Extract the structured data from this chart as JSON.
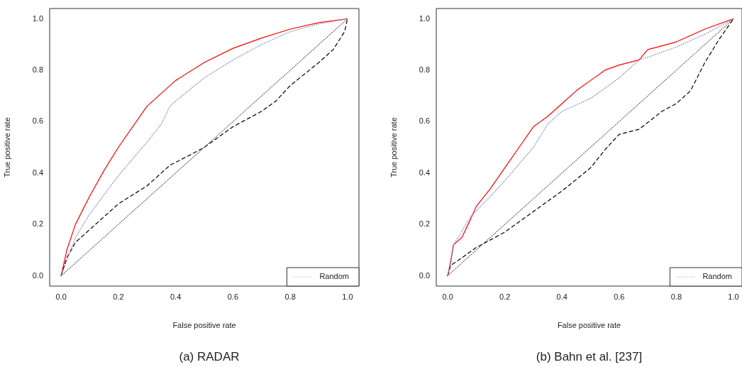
{
  "chart_data": [
    {
      "type": "line",
      "title": "(a) RADAR",
      "xlabel": "False positive rate",
      "ylabel": "True positive rate",
      "xlim": [
        -0.04,
        1.04
      ],
      "ylim": [
        -0.04,
        1.04
      ],
      "xticks": [
        {
          "value": 0,
          "label": "0.0"
        },
        {
          "value": 0.2,
          "label": "0.2"
        },
        {
          "value": 0.4,
          "label": "0.4"
        },
        {
          "value": 0.6,
          "label": "0.6"
        },
        {
          "value": 0.8,
          "label": "0.8"
        },
        {
          "value": 1,
          "label": "1.0"
        }
      ],
      "yticks": [
        {
          "value": 0,
          "label": "0.0"
        },
        {
          "value": 0.2,
          "label": "0.2"
        },
        {
          "value": 0.4,
          "label": "0.4"
        },
        {
          "value": 0.6,
          "label": "0.6"
        },
        {
          "value": 0.8,
          "label": "0.8"
        },
        {
          "value": 1,
          "label": "1.0"
        }
      ],
      "legend": "bottom right",
      "series": [
        {
          "color": "#ff0000",
          "line_style": "solid",
          "x": [
            0,
            0.02,
            0.05,
            0.1,
            0.15,
            0.2,
            0.3,
            0.4,
            0.5,
            0.6,
            0.7,
            0.8,
            0.9,
            1
          ],
          "values": [
            0,
            0.1,
            0.2,
            0.31,
            0.41,
            0.5,
            0.66,
            0.76,
            0.83,
            0.885,
            0.925,
            0.96,
            0.985,
            1
          ]
        },
        {
          "color": "#7080d0",
          "line_style": "dotted",
          "x": [
            0,
            0.05,
            0.1,
            0.2,
            0.3,
            0.35,
            0.38,
            0.4,
            0.5,
            0.6,
            0.7,
            0.8,
            0.9,
            1
          ],
          "values": [
            0,
            0.15,
            0.24,
            0.39,
            0.52,
            0.59,
            0.66,
            0.68,
            0.77,
            0.84,
            0.9,
            0.95,
            0.98,
            1
          ]
        },
        {
          "color": "#000000",
          "line_style": "dashed",
          "x": [
            0,
            0.02,
            0.05,
            0.1,
            0.15,
            0.2,
            0.3,
            0.38,
            0.45,
            0.5,
            0.6,
            0.7,
            0.75,
            0.8,
            0.9,
            0.95,
            0.99,
            1
          ],
          "values": [
            0,
            0.07,
            0.13,
            0.18,
            0.23,
            0.28,
            0.35,
            0.43,
            0.47,
            0.5,
            0.58,
            0.64,
            0.68,
            0.74,
            0.83,
            0.88,
            0.95,
            1
          ]
        },
        {
          "name": "Random",
          "color": "#555555",
          "line_style": "dotted",
          "x": [
            0,
            1
          ],
          "values": [
            0,
            1
          ]
        }
      ]
    },
    {
      "type": "line",
      "title": "(b) Bahn et al. [237]",
      "xlabel": "False positive rate",
      "ylabel": "True positive rate",
      "xlim": [
        -0.04,
        1.03
      ],
      "ylim": [
        -0.04,
        1.04
      ],
      "xticks": [
        {
          "value": 0,
          "label": "0.0"
        },
        {
          "value": 0.2,
          "label": "0.2"
        },
        {
          "value": 0.4,
          "label": "0.4"
        },
        {
          "value": 0.6,
          "label": "0.6"
        },
        {
          "value": 0.8,
          "label": "0.8"
        },
        {
          "value": 1,
          "label": "1.0"
        }
      ],
      "yticks": [
        {
          "value": 0,
          "label": "0.0"
        },
        {
          "value": 0.2,
          "label": "0.2"
        },
        {
          "value": 0.4,
          "label": "0.4"
        },
        {
          "value": 0.6,
          "label": "0.6"
        },
        {
          "value": 0.8,
          "label": "0.8"
        },
        {
          "value": 1,
          "label": "1.0"
        }
      ],
      "legend": "bottom right",
      "series": [
        {
          "color": "#ff0000",
          "line_style": "solid",
          "x": [
            0,
            0.01,
            0.02,
            0.05,
            0.08,
            0.1,
            0.15,
            0.2,
            0.25,
            0.3,
            0.35,
            0.4,
            0.45,
            0.5,
            0.55,
            0.6,
            0.67,
            0.7,
            0.8,
            0.9,
            1
          ],
          "values": [
            0,
            0.05,
            0.12,
            0.15,
            0.22,
            0.27,
            0.34,
            0.42,
            0.5,
            0.58,
            0.62,
            0.67,
            0.72,
            0.76,
            0.8,
            0.82,
            0.84,
            0.88,
            0.91,
            0.96,
            1
          ]
        },
        {
          "color": "#7080d0",
          "line_style": "dotted",
          "x": [
            0,
            0.02,
            0.08,
            0.15,
            0.2,
            0.3,
            0.35,
            0.4,
            0.5,
            0.6,
            0.67,
            0.7,
            0.8,
            0.9,
            1
          ],
          "values": [
            0,
            0.12,
            0.23,
            0.31,
            0.37,
            0.5,
            0.59,
            0.64,
            0.69,
            0.77,
            0.84,
            0.85,
            0.89,
            0.94,
            1
          ]
        },
        {
          "color": "#000000",
          "line_style": "dashed",
          "x": [
            0,
            0.01,
            0.05,
            0.1,
            0.2,
            0.3,
            0.4,
            0.5,
            0.55,
            0.6,
            0.67,
            0.75,
            0.8,
            0.85,
            0.9,
            0.95,
            1
          ],
          "values": [
            0,
            0.04,
            0.07,
            0.11,
            0.17,
            0.25,
            0.33,
            0.42,
            0.49,
            0.55,
            0.57,
            0.64,
            0.67,
            0.72,
            0.83,
            0.92,
            1
          ]
        },
        {
          "name": "Random",
          "color": "#555555",
          "line_style": "dotted",
          "x": [
            0,
            1
          ],
          "values": [
            0,
            1
          ]
        }
      ]
    }
  ]
}
